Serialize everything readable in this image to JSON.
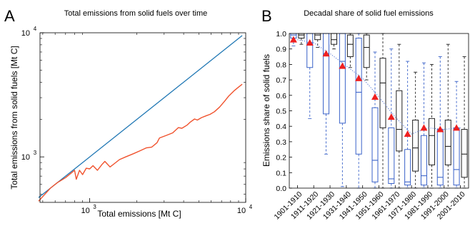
{
  "chart_data": [
    {
      "panel_letter": "A",
      "type": "line",
      "title": "Total emissions from solid fuels over time",
      "xlabel": "Total emissions [Mt C]",
      "ylabel": "Total emissions from solid fuels [Mt C]",
      "xscale": "log",
      "yscale": "log",
      "xlim": [
        480,
        10000
      ],
      "ylim": [
        430,
        10000
      ],
      "x_ticks": [
        {
          "value": 1000,
          "base": "10",
          "exp": "3"
        },
        {
          "value": 10000,
          "base": "10",
          "exp": "4"
        }
      ],
      "y_ticks": [
        {
          "value": 1000,
          "base": "10",
          "exp": "3"
        },
        {
          "value": 10000,
          "base": "10",
          "exp": "4"
        }
      ],
      "grid": false,
      "series": [
        {
          "color": "#1f77b4",
          "points": [
            [
              470,
              470
            ],
            [
              9500,
              9500
            ]
          ]
        },
        {
          "color": "#f0522d",
          "points": [
            [
              470,
              440
            ],
            [
              560,
              560
            ],
            [
              620,
              620
            ],
            [
              700,
              680
            ],
            [
              760,
              740
            ],
            [
              800,
              780
            ],
            [
              820,
              660
            ],
            [
              860,
              780
            ],
            [
              900,
              720
            ],
            [
              950,
              810
            ],
            [
              1000,
              800
            ],
            [
              1050,
              850
            ],
            [
              1120,
              780
            ],
            [
              1200,
              870
            ],
            [
              1250,
              920
            ],
            [
              1350,
              830
            ],
            [
              1450,
              890
            ],
            [
              1550,
              950
            ],
            [
              1700,
              1000
            ],
            [
              1900,
              1060
            ],
            [
              2100,
              1120
            ],
            [
              2300,
              1180
            ],
            [
              2500,
              1200
            ],
            [
              2700,
              1300
            ],
            [
              2800,
              1420
            ],
            [
              3100,
              1490
            ],
            [
              3400,
              1560
            ],
            [
              3700,
              1720
            ],
            [
              3900,
              1700
            ],
            [
              4200,
              1800
            ],
            [
              4400,
              1900
            ],
            [
              4700,
              2020
            ],
            [
              4900,
              1980
            ],
            [
              5200,
              2070
            ],
            [
              5600,
              2150
            ],
            [
              5900,
              2200
            ],
            [
              6300,
              2310
            ],
            [
              6800,
              2520
            ],
            [
              7300,
              2800
            ],
            [
              7800,
              3100
            ],
            [
              8400,
              3400
            ],
            [
              9000,
              3650
            ],
            [
              9500,
              3850
            ]
          ]
        }
      ]
    },
    {
      "panel_letter": "B",
      "type": "box",
      "title": "Decadal share of solid fuel emissions",
      "ylabel": "Emissions share of solid fuels",
      "ylim": [
        0,
        1
      ],
      "y_ticks": [
        "0.0",
        "0.1",
        "0.2",
        "0.3",
        "0.4",
        "0.5",
        "0.6",
        "0.7",
        "0.8",
        "0.9",
        "1.0"
      ],
      "categories": [
        "1901-1910",
        "1911-1920",
        "1921-1930",
        "1931-1940",
        "1941-1950",
        "1951-1960",
        "1961-1970",
        "1971-1980",
        "1981-1990",
        "1991-2000",
        "2001-2010"
      ],
      "series": [
        {
          "color": "#3a62c9",
          "boxes": [
            {
              "min": 0.92,
              "q1": 0.97,
              "median": 0.99,
              "q3": 1.0,
              "max": 1.0
            },
            {
              "min": 0.45,
              "q1": 0.78,
              "median": 0.94,
              "q3": 1.0,
              "max": 1.0
            },
            {
              "min": 0.22,
              "q1": 0.48,
              "median": 0.87,
              "q3": 1.0,
              "max": 1.0
            },
            {
              "min": 0.01,
              "q1": 0.42,
              "median": 0.82,
              "q3": 1.0,
              "max": 1.0
            },
            {
              "min": 0.0,
              "q1": 0.22,
              "median": 0.62,
              "q3": 0.97,
              "max": 1.0
            },
            {
              "min": 0.0,
              "q1": 0.04,
              "median": 0.18,
              "q3": 0.52,
              "max": 0.88
            },
            {
              "min": 0.0,
              "q1": 0.03,
              "median": 0.06,
              "q3": 0.39,
              "max": 0.9
            },
            {
              "min": 0.0,
              "q1": 0.02,
              "median": 0.04,
              "q3": 0.25,
              "max": 0.82
            },
            {
              "min": 0.0,
              "q1": 0.02,
              "median": 0.08,
              "q3": 0.34,
              "max": 0.81
            },
            {
              "min": 0.0,
              "q1": 0.02,
              "median": 0.07,
              "q3": 0.38,
              "max": 0.85
            },
            {
              "min": 0.0,
              "q1": 0.02,
              "median": 0.12,
              "q3": 0.39,
              "max": 0.69
            }
          ]
        },
        {
          "color": "#222222",
          "boxes": [
            {
              "min": 0.93,
              "q1": 0.97,
              "median": 0.99,
              "q3": 1.0,
              "max": 1.0
            },
            {
              "min": 0.91,
              "q1": 0.96,
              "median": 0.99,
              "q3": 1.0,
              "max": 1.0
            },
            {
              "min": 0.9,
              "q1": 0.93,
              "median": 0.96,
              "q3": 1.0,
              "max": 1.0
            },
            {
              "min": 0.78,
              "q1": 0.85,
              "median": 0.93,
              "q3": 0.99,
              "max": 1.0
            },
            {
              "min": 0.7,
              "q1": 0.78,
              "median": 0.91,
              "q3": 0.99,
              "max": 1.0
            },
            {
              "min": 0.0,
              "q1": 0.39,
              "median": 0.68,
              "q3": 0.84,
              "max": 1.0
            },
            {
              "min": 0.0,
              "q1": 0.24,
              "median": 0.38,
              "q3": 0.63,
              "max": 0.93
            },
            {
              "min": 0.0,
              "q1": 0.11,
              "median": 0.26,
              "q3": 0.44,
              "max": 0.75
            },
            {
              "min": 0.0,
              "q1": 0.15,
              "median": 0.34,
              "q3": 0.45,
              "max": 0.8
            },
            {
              "min": 0.0,
              "q1": 0.15,
              "median": 0.27,
              "q3": 0.44,
              "max": 0.93
            },
            {
              "min": 0.0,
              "q1": 0.07,
              "median": 0.22,
              "q3": 0.38,
              "max": 0.85
            }
          ]
        }
      ],
      "means": {
        "color": "#ef2020",
        "values": [
          0.96,
          0.94,
          0.87,
          0.79,
          0.71,
          0.59,
          0.46,
          0.35,
          0.39,
          0.38,
          0.39
        ]
      },
      "trend_color": "#4a6fd0"
    }
  ]
}
